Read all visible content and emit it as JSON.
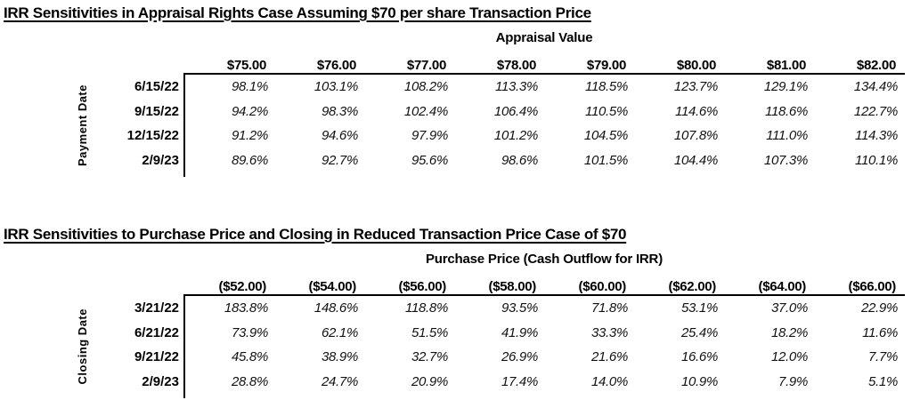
{
  "page": {
    "background_color": "#ffffff",
    "text_color": "#000000",
    "border_color": "#000000"
  },
  "tables": [
    {
      "title": "IRR Sensitivities in Appraisal Rights Case Assuming $70 per share Transaction Price",
      "group_header": "Appraisal Value",
      "row_axis_label": "Payment Date",
      "column_headers": [
        "$75.00",
        "$76.00",
        "$77.00",
        "$78.00",
        "$79.00",
        "$80.00",
        "$81.00",
        "$82.00"
      ],
      "rows": [
        {
          "label": "6/15/22",
          "values": [
            "98.1%",
            "103.1%",
            "108.2%",
            "113.3%",
            "118.5%",
            "123.7%",
            "129.1%",
            "134.4%"
          ]
        },
        {
          "label": "9/15/22",
          "values": [
            "94.2%",
            "98.3%",
            "102.4%",
            "106.4%",
            "110.5%",
            "114.6%",
            "118.6%",
            "122.7%"
          ]
        },
        {
          "label": "12/15/22",
          "values": [
            "91.2%",
            "94.6%",
            "97.9%",
            "101.2%",
            "104.5%",
            "107.8%",
            "111.0%",
            "114.3%"
          ]
        },
        {
          "label": "2/9/23",
          "values": [
            "89.6%",
            "92.7%",
            "95.6%",
            "98.6%",
            "101.5%",
            "104.4%",
            "107.3%",
            "110.1%"
          ]
        }
      ]
    },
    {
      "title": "IRR Sensitivities to Purchase Price and Closing in Reduced Transaction Price Case of $70",
      "group_header": "Purchase Price (Cash Outflow for IRR)",
      "row_axis_label": "Closing Date",
      "column_headers": [
        "($52.00)",
        "($54.00)",
        "($56.00)",
        "($58.00)",
        "($60.00)",
        "($62.00)",
        "($64.00)",
        "($66.00)"
      ],
      "rows": [
        {
          "label": "3/21/22",
          "values": [
            "183.8%",
            "148.6%",
            "118.8%",
            "93.5%",
            "71.8%",
            "53.1%",
            "37.0%",
            "22.9%"
          ]
        },
        {
          "label": "6/21/22",
          "values": [
            "73.9%",
            "62.1%",
            "51.5%",
            "41.9%",
            "33.3%",
            "25.4%",
            "18.2%",
            "11.6%"
          ]
        },
        {
          "label": "9/21/22",
          "values": [
            "45.8%",
            "38.9%",
            "32.7%",
            "26.9%",
            "21.6%",
            "16.6%",
            "12.0%",
            "7.7%"
          ]
        },
        {
          "label": "2/9/23",
          "values": [
            "28.8%",
            "24.7%",
            "20.9%",
            "17.4%",
            "14.0%",
            "10.9%",
            "7.9%",
            "5.1%"
          ]
        }
      ]
    }
  ]
}
